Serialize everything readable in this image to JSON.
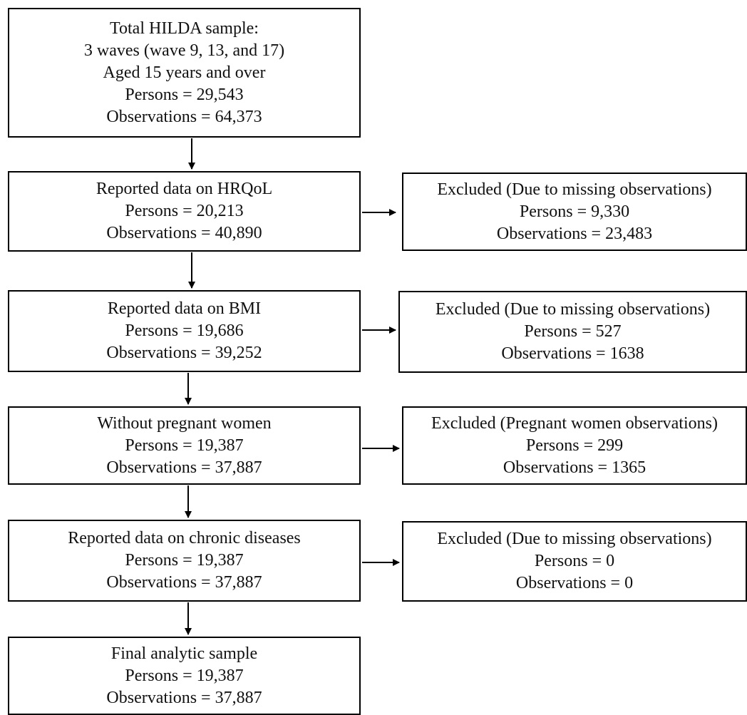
{
  "flow": {
    "start": {
      "title": "Total HILDA sample:",
      "line2": "3 waves (wave 9, 13, and 17)",
      "line3": "Aged 15 years and over",
      "persons": "Persons = 29,543",
      "observations": "Observations = 64,373"
    },
    "hrqol": {
      "title": "Reported data on HRQoL",
      "persons": "Persons = 20,213",
      "observations": "Observations = 40,890"
    },
    "bmi": {
      "title": "Reported data on BMI",
      "persons": "Persons = 19,686",
      "observations": "Observations = 39,252"
    },
    "pregnant": {
      "title": "Without pregnant women",
      "persons": "Persons = 19,387",
      "observations": "Observations = 37,887"
    },
    "chronic": {
      "title": "Reported data on chronic diseases",
      "persons": "Persons = 19,387",
      "observations": "Observations = 37,887"
    },
    "final": {
      "title": "Final analytic sample",
      "persons": "Persons = 19,387",
      "observations": "Observations = 37,887"
    }
  },
  "excluded": {
    "hrqol": {
      "title": "Excluded (Due to missing observations)",
      "persons": "Persons = 9,330",
      "observations": "Observations = 23,483"
    },
    "bmi": {
      "title": "Excluded (Due to missing observations)",
      "persons": "Persons = 527",
      "observations": "Observations = 1638"
    },
    "pregnant": {
      "title": "Excluded (Pregnant women observations)",
      "persons": "Persons = 299",
      "observations": "Observations = 1365"
    },
    "chronic": {
      "title": "Excluded (Due to missing observations)",
      "persons": "Persons = 0",
      "observations": "Observations = 0"
    }
  }
}
